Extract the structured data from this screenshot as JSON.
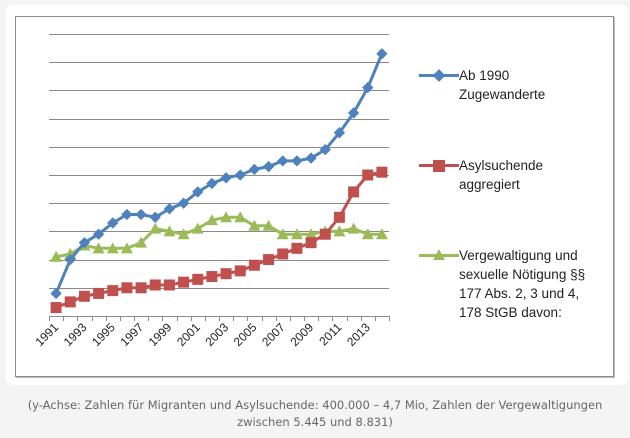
{
  "chart_data": {
    "type": "line",
    "title": "",
    "xlabel": "",
    "ylabel": "",
    "ylim": [
      0,
      10
    ],
    "y_unit_note": "relative gridline units (no y-axis labels shown)",
    "grid": true,
    "legend_position": "right",
    "x": [
      1991,
      1992,
      1993,
      1994,
      1995,
      1996,
      1997,
      1998,
      1999,
      2000,
      2001,
      2002,
      2003,
      2004,
      2005,
      2006,
      2007,
      2008,
      2009,
      2010,
      2011,
      2012,
      2013,
      2014
    ],
    "x_tick_labels": [
      "1991",
      "1993",
      "1995",
      "1997",
      "1999",
      "2001",
      "2003",
      "2005",
      "2007",
      "2009",
      "2011",
      "2013"
    ],
    "series": [
      {
        "name": "Ab 1990 Zugewanderte",
        "legend_lines": [
          "Ab 1990",
          "Zugewanderte"
        ],
        "color": "#4f81bd",
        "marker": "diamond",
        "values": [
          0.8,
          2.0,
          2.6,
          2.9,
          3.3,
          3.6,
          3.6,
          3.5,
          3.8,
          4.0,
          4.4,
          4.7,
          4.9,
          5.0,
          5.2,
          5.3,
          5.5,
          5.5,
          5.6,
          5.9,
          6.5,
          7.2,
          8.1,
          9.3
        ]
      },
      {
        "name": "Asylsuchende aggregiert",
        "legend_lines": [
          "Asylsuchende",
          "aggregiert"
        ],
        "color": "#c0504d",
        "marker": "square",
        "values": [
          0.3,
          0.5,
          0.7,
          0.8,
          0.9,
          1.0,
          1.0,
          1.1,
          1.1,
          1.2,
          1.3,
          1.4,
          1.5,
          1.6,
          1.8,
          2.0,
          2.2,
          2.4,
          2.6,
          2.9,
          3.5,
          4.4,
          5.0,
          5.1
        ]
      },
      {
        "name": "Vergewaltigung und sexuelle Nötigung §§ 177 Abs. 2, 3 und 4, 178 StGB davon:",
        "legend_lines": [
          "Vergewaltigung und",
          "sexuelle Nötigung §§",
          "177 Abs. 2, 3 und 4,",
          "178 StGB davon:"
        ],
        "color": "#9bbb59",
        "marker": "triangle",
        "values": [
          2.1,
          2.2,
          2.5,
          2.4,
          2.4,
          2.4,
          2.6,
          3.1,
          3.0,
          2.9,
          3.1,
          3.4,
          3.5,
          3.5,
          3.2,
          3.2,
          2.9,
          2.9,
          2.9,
          3.0,
          3.0,
          3.1,
          2.9,
          2.9
        ]
      }
    ]
  },
  "caption_lines": [
    "(y-Achse: Zahlen für Migranten und Asylsuchende: 400.000 – 4,7 Mio, Zahlen der Vergewaltigungen",
    "zwischen 5.445 und 8.831)"
  ]
}
